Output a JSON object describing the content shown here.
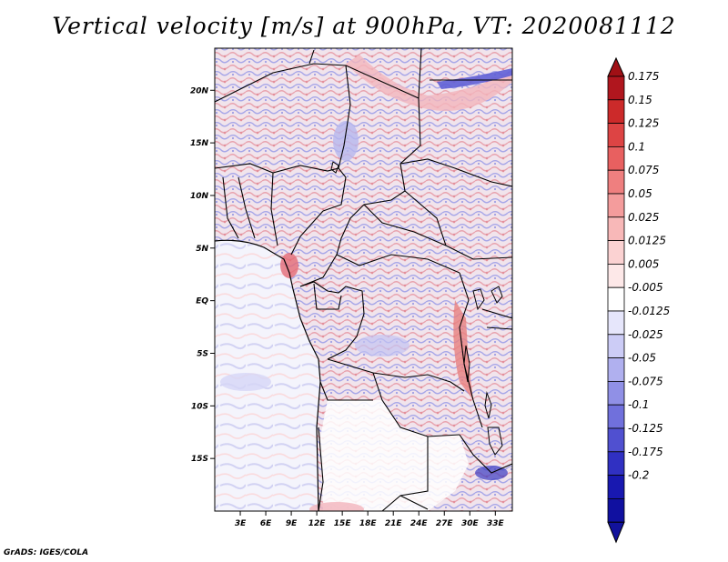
{
  "title": "Vertical velocity [m/s] at 900hPa, VT: 2020081112",
  "credit": "GrADS: IGES/COLA",
  "map": {
    "variable": "Vertical velocity",
    "units": "m/s",
    "level": "900hPa",
    "valid_time": "2020081112",
    "lon_range": [
      0,
      35
    ],
    "lat_range": [
      -20,
      24
    ],
    "x_ticks": [
      "3E",
      "6E",
      "9E",
      "12E",
      "15E",
      "18E",
      "21E",
      "24E",
      "27E",
      "30E",
      "33E"
    ],
    "y_ticks": [
      "20N",
      "15N",
      "10N",
      "5N",
      "EQ",
      "5S",
      "10S",
      "15S"
    ]
  },
  "colorbar": {
    "levels": [
      "0.175",
      "0.15",
      "0.125",
      "0.1",
      "0.075",
      "0.05",
      "0.025",
      "0.0125",
      "0.005",
      "-0.005",
      "-0.0125",
      "-0.025",
      "-0.05",
      "-0.075",
      "-0.1",
      "-0.125",
      "-0.175",
      "-0.2"
    ],
    "colors": [
      "#b0161e",
      "#cc2a2a",
      "#dd4444",
      "#e86060",
      "#ef7f7f",
      "#f49c9c",
      "#f8b8b8",
      "#fbd2d2",
      "#fde8e8",
      "#ffffff",
      "#e6e6fb",
      "#ccccf6",
      "#b0b0ef",
      "#9090e6",
      "#7070dc",
      "#5050d0",
      "#3030c2",
      "#1818b0",
      "#1010a0"
    ],
    "top_arrow_color": "#a01015",
    "bottom_arrow_color": "#12129c"
  }
}
